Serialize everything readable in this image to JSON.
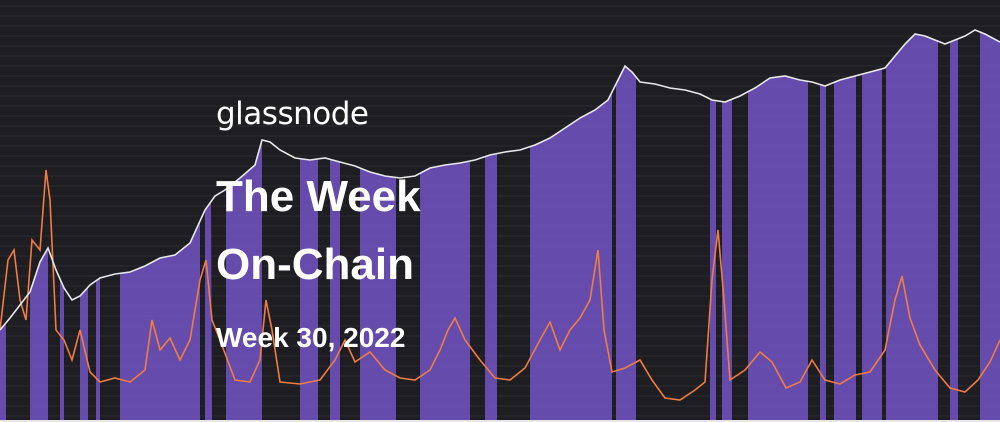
{
  "brand": {
    "name": "glassnode"
  },
  "headline": {
    "title_line_1": "The Week",
    "title_line_2": "On-Chain",
    "subtitle": "Week 30, 2022"
  },
  "colors": {
    "background": "#1e1d21",
    "band": "#6b4fb8",
    "price_line": "#e8e8ea",
    "indicator_line": "#ef7d45",
    "text": "#ffffff"
  }
}
